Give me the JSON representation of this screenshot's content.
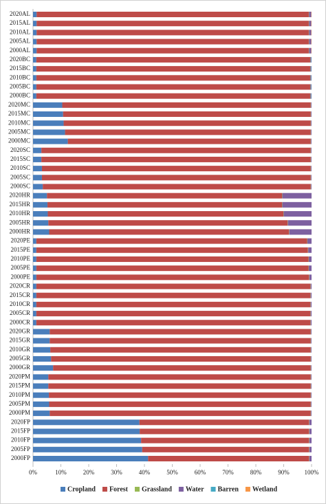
{
  "chart_data": {
    "type": "stacked-bar-horizontal",
    "categories": [
      "2020AL",
      "2015AL",
      "2010AL",
      "2005AL",
      "2000AL",
      "2020BC",
      "2015BC",
      "2010BC",
      "2005BC",
      "2000BC",
      "2020MC",
      "2015MC",
      "2010MC",
      "2005MC",
      "2000MC",
      "2020SC",
      "2015SC",
      "2010SC",
      "2005SC",
      "2000SC",
      "2020HR",
      "2015HR",
      "2010HR",
      "2005HR",
      "2000HR",
      "2020PE",
      "2015PE",
      "2010PE",
      "2005PE",
      "2000PE",
      "2020CR",
      "2015CR",
      "2010CR",
      "2005CR",
      "2000CR",
      "2020GR",
      "2015GR",
      "2010GR",
      "2005GR",
      "2000GR",
      "2020PM",
      "2015PM",
      "2010PM",
      "2005PM",
      "2000PM",
      "2020FP",
      "2015FP",
      "2010FP",
      "2005FP",
      "2000FP"
    ],
    "series": [
      {
        "name": "Cropland",
        "color": "#4a7ebb",
        "values": [
          1.3,
          1.3,
          1.3,
          1.3,
          1.3,
          1.2,
          1.2,
          1.2,
          1.2,
          1.2,
          10.5,
          10.8,
          11,
          11.5,
          12.5,
          3,
          3,
          3.2,
          3.2,
          3.5,
          5,
          5.2,
          5.3,
          5.5,
          5.8,
          1.2,
          1.2,
          1.2,
          1.2,
          1.2,
          1.2,
          1.2,
          1.2,
          1.2,
          1.2,
          6,
          6,
          6.2,
          6.5,
          7.2,
          5.5,
          5.5,
          5.7,
          5.8,
          6,
          38.2,
          38.3,
          38.8,
          39.2,
          41.3
        ]
      },
      {
        "name": "Forest",
        "color": "#be4b48",
        "values": [
          97.7,
          97.7,
          97.7,
          97.7,
          97.7,
          98.3,
          98.3,
          98.3,
          98.3,
          98.3,
          89.2,
          88.9,
          88.7,
          88.2,
          87.2,
          96.7,
          96.7,
          96.5,
          96.5,
          96.2,
          84.4,
          84.2,
          84.6,
          85.9,
          86.1,
          97.2,
          97.5,
          97.7,
          97.7,
          97.9,
          98.4,
          98.4,
          98.4,
          98.4,
          98.4,
          93.7,
          93.7,
          93.5,
          93.2,
          92.5,
          94.2,
          94.2,
          94,
          93.9,
          93.7,
          60.9,
          60.8,
          60.3,
          59.9,
          57.8
        ]
      },
      {
        "name": "Grassland",
        "color": "#98b954",
        "values": [
          0.1,
          0.1,
          0.1,
          0.1,
          0.1,
          0.1,
          0.1,
          0.1,
          0.1,
          0.1,
          0.1,
          0.1,
          0.1,
          0.1,
          0.1,
          0.1,
          0.1,
          0.1,
          0.1,
          0.1,
          0.1,
          0.1,
          0.1,
          0.1,
          0.1,
          0.1,
          0.1,
          0.1,
          0.1,
          0.1,
          0.1,
          0.1,
          0.1,
          0.1,
          0.1,
          0.1,
          0.1,
          0.1,
          0.1,
          0.1,
          0.1,
          0.1,
          0.1,
          0.1,
          0.1,
          0.1,
          0.1,
          0.1,
          0.1,
          0.1
        ]
      },
      {
        "name": "Water",
        "color": "#7d60a0",
        "values": [
          0.8,
          0.8,
          0.8,
          0.8,
          0.8,
          0.3,
          0.3,
          0.3,
          0.3,
          0.3,
          0.2,
          0.2,
          0.2,
          0.2,
          0.2,
          0.2,
          0.2,
          0.2,
          0.2,
          0.2,
          10.5,
          10.5,
          10,
          8.5,
          8,
          1.5,
          1.2,
          1,
          1,
          0.8,
          0.3,
          0.3,
          0.3,
          0.3,
          0.3,
          0.2,
          0.2,
          0.2,
          0.2,
          0.2,
          0.2,
          0.2,
          0.2,
          0.2,
          0.2,
          0.8,
          0.8,
          0.8,
          0.8,
          0.8
        ]
      },
      {
        "name": "Barren",
        "color": "#46aac5",
        "values": [
          0,
          0,
          0,
          0,
          0,
          0.1,
          0.1,
          0.1,
          0.1,
          0.1,
          0,
          0,
          0,
          0,
          0,
          0,
          0,
          0,
          0,
          0,
          0,
          0,
          0,
          0,
          0,
          0,
          0,
          0,
          0,
          0,
          0,
          0,
          0,
          0,
          0,
          0,
          0,
          0,
          0,
          0,
          0,
          0,
          0,
          0,
          0,
          0,
          0,
          0,
          0,
          0
        ]
      },
      {
        "name": "Wetland",
        "color": "#f79646",
        "values": [
          0.1,
          0.1,
          0.1,
          0.1,
          0.1,
          0,
          0,
          0,
          0,
          0,
          0,
          0,
          0,
          0,
          0,
          0,
          0,
          0,
          0,
          0,
          0,
          0,
          0,
          0,
          0,
          0,
          0,
          0,
          0,
          0,
          0,
          0,
          0,
          0,
          0,
          0,
          0,
          0,
          0,
          0,
          0,
          0,
          0,
          0,
          0,
          0,
          0,
          0,
          0,
          0
        ]
      }
    ],
    "xlim": [
      0,
      100
    ],
    "xticks": [
      {
        "value": 0,
        "label": "0%"
      },
      {
        "value": 10,
        "label": "10%"
      },
      {
        "value": 20,
        "label": "20%"
      },
      {
        "value": 30,
        "label": "30%"
      },
      {
        "value": 40,
        "label": "40%"
      },
      {
        "value": 50,
        "label": "50%"
      },
      {
        "value": 60,
        "label": "60%"
      },
      {
        "value": 70,
        "label": "70%"
      },
      {
        "value": 80,
        "label": "80%"
      },
      {
        "value": 90,
        "label": "90%"
      },
      {
        "value": 100,
        "label": "100%"
      }
    ],
    "legend": "bottom"
  }
}
